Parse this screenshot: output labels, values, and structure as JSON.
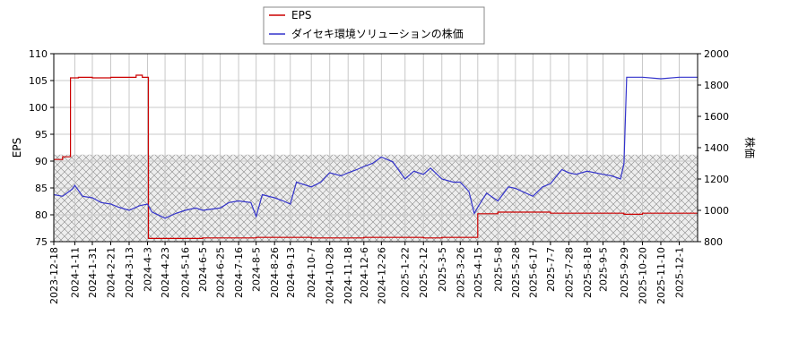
{
  "chart_data": {
    "type": "line",
    "legend": {
      "placement": "top-center",
      "entries": [
        {
          "label": "EPS",
          "color": "#cc0000"
        },
        {
          "label": "ダイセキ環境ソリューションの株価",
          "color": "#3333cc"
        }
      ]
    },
    "x_tick_labels": [
      "2023-12-18",
      "2024-1-11",
      "2024-1-31",
      "2024-2-21",
      "2024-3-13",
      "2024-4-3",
      "2024-4-23",
      "2024-5-16",
      "2024-6-5",
      "2024-6-25",
      "2024-7-16",
      "2024-8-5",
      "2024-8-26",
      "2024-9-13",
      "2024-10-7",
      "2024-10-28",
      "2024-11-18",
      "2024-12-6",
      "2024-12-26",
      "2025-1-22",
      "2025-2-12",
      "2025-3-5",
      "2025-3-26",
      "2025-4-15",
      "2025-5-8",
      "2025-5-28",
      "2025-6-17",
      "2025-7-7",
      "2025-7-28",
      "2025-8-18",
      "2025-9-5",
      "2025-9-29",
      "2025-10-20",
      "2025-11-10",
      "2025-12-1"
    ],
    "xrange": [
      "2023-12-18",
      "2025-12-22"
    ],
    "y_left": {
      "label": "EPS",
      "range": [
        75,
        110
      ],
      "ticks": [
        75,
        80,
        85,
        90,
        95,
        100,
        105,
        110
      ]
    },
    "y_right": {
      "label": "株価",
      "range": [
        800,
        2000
      ],
      "ticks": [
        800,
        1000,
        1200,
        1400,
        1600,
        1800,
        2000
      ]
    },
    "grid": true,
    "hatched_band": {
      "axis": "left",
      "range": [
        75,
        91.2
      ]
    },
    "series": [
      {
        "name": "EPS",
        "axis": "left",
        "color": "#cc0000",
        "step": true,
        "points": [
          [
            "2023-12-18",
            90.3
          ],
          [
            "2023-12-28",
            90.8
          ],
          [
            "2024-1-5",
            90.8
          ],
          [
            "2024-1-6",
            105.5
          ],
          [
            "2024-1-15",
            105.6
          ],
          [
            "2024-1-31",
            105.5
          ],
          [
            "2024-2-21",
            105.6
          ],
          [
            "2024-3-13",
            105.6
          ],
          [
            "2024-3-21",
            106.0
          ],
          [
            "2024-3-28",
            105.6
          ],
          [
            "2024-4-3",
            105.6
          ],
          [
            "2024-4-4",
            75.6
          ],
          [
            "2024-6-5",
            75.7
          ],
          [
            "2024-8-5",
            75.8
          ],
          [
            "2024-10-7",
            75.7
          ],
          [
            "2024-12-6",
            75.8
          ],
          [
            "2025-2-12",
            75.7
          ],
          [
            "2025-3-5",
            75.8
          ],
          [
            "2025-4-10",
            75.8
          ],
          [
            "2025-4-15",
            80.2
          ],
          [
            "2025-5-8",
            80.5
          ],
          [
            "2025-6-17",
            80.5
          ],
          [
            "2025-7-7",
            80.3
          ],
          [
            "2025-8-18",
            80.3
          ],
          [
            "2025-9-29",
            80.1
          ],
          [
            "2025-10-20",
            80.3
          ],
          [
            "2025-12-1",
            80.3
          ],
          [
            "2025-12-22",
            80.2
          ]
        ]
      },
      {
        "name": "ダイセキ環境ソリューションの株価",
        "axis": "right",
        "color": "#3333cc",
        "step": false,
        "points": [
          [
            "2023-12-18",
            1100
          ],
          [
            "2023-12-28",
            1090
          ],
          [
            "2024-1-8",
            1135
          ],
          [
            "2024-1-11",
            1160
          ],
          [
            "2024-1-20",
            1090
          ],
          [
            "2024-1-31",
            1080
          ],
          [
            "2024-2-10",
            1050
          ],
          [
            "2024-2-21",
            1040
          ],
          [
            "2024-3-1",
            1020
          ],
          [
            "2024-3-13",
            1000
          ],
          [
            "2024-3-25",
            1030
          ],
          [
            "2024-4-3",
            1040
          ],
          [
            "2024-4-8",
            990
          ],
          [
            "2024-4-23",
            950
          ],
          [
            "2024-5-5",
            980
          ],
          [
            "2024-5-16",
            1000
          ],
          [
            "2024-5-28",
            1015
          ],
          [
            "2024-6-5",
            1000
          ],
          [
            "2024-6-25",
            1015
          ],
          [
            "2024-7-5",
            1050
          ],
          [
            "2024-7-16",
            1060
          ],
          [
            "2024-7-30",
            1050
          ],
          [
            "2024-8-5",
            960
          ],
          [
            "2024-8-12",
            1100
          ],
          [
            "2024-8-26",
            1080
          ],
          [
            "2024-9-5",
            1060
          ],
          [
            "2024-9-13",
            1040
          ],
          [
            "2024-9-20",
            1180
          ],
          [
            "2024-10-7",
            1150
          ],
          [
            "2024-10-18",
            1180
          ],
          [
            "2024-10-28",
            1240
          ],
          [
            "2024-11-10",
            1220
          ],
          [
            "2024-11-18",
            1240
          ],
          [
            "2024-11-28",
            1260
          ],
          [
            "2024-12-6",
            1280
          ],
          [
            "2024-12-16",
            1300
          ],
          [
            "2024-12-26",
            1340
          ],
          [
            "2025-1-8",
            1310
          ],
          [
            "2025-1-22",
            1200
          ],
          [
            "2025-2-1",
            1250
          ],
          [
            "2025-2-12",
            1230
          ],
          [
            "2025-2-20",
            1270
          ],
          [
            "2025-3-5",
            1200
          ],
          [
            "2025-3-18",
            1180
          ],
          [
            "2025-3-26",
            1180
          ],
          [
            "2025-4-5",
            1120
          ],
          [
            "2025-4-11",
            980
          ],
          [
            "2025-4-15",
            1020
          ],
          [
            "2025-4-25",
            1110
          ],
          [
            "2025-5-8",
            1060
          ],
          [
            "2025-5-20",
            1150
          ],
          [
            "2025-5-28",
            1140
          ],
          [
            "2025-6-17",
            1090
          ],
          [
            "2025-6-28",
            1150
          ],
          [
            "2025-7-7",
            1170
          ],
          [
            "2025-7-20",
            1260
          ],
          [
            "2025-7-28",
            1240
          ],
          [
            "2025-8-5",
            1230
          ],
          [
            "2025-8-18",
            1250
          ],
          [
            "2025-9-5",
            1230
          ],
          [
            "2025-9-15",
            1220
          ],
          [
            "2025-9-25",
            1200
          ],
          [
            "2025-9-29",
            1300
          ],
          [
            "2025-10-2",
            1850
          ],
          [
            "2025-10-20",
            1850
          ],
          [
            "2025-11-10",
            1840
          ],
          [
            "2025-12-1",
            1850
          ],
          [
            "2025-12-22",
            1850
          ]
        ]
      }
    ]
  }
}
